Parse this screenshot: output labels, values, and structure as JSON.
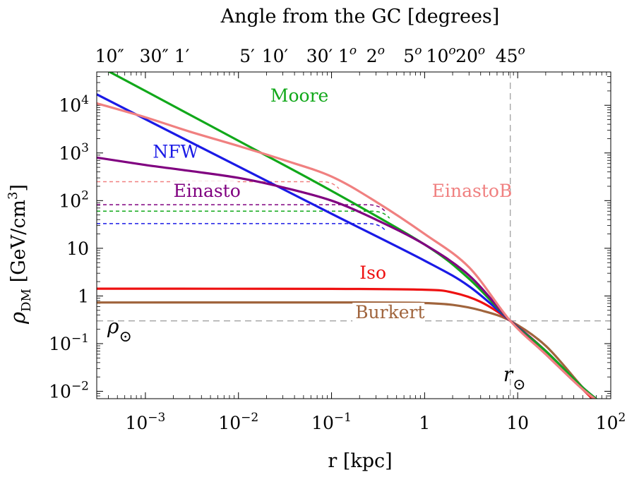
{
  "chart_data": {
    "type": "line",
    "title": "Angle from the GC [degrees]",
    "xlabel": "r [kpc]",
    "ylabel": "ρ_DM [GeV/cm³]",
    "xscale": "log",
    "yscale": "log",
    "xlim": [
      0.0003,
      100
    ],
    "ylim": [
      0.007,
      50000
    ],
    "x_ticks": [
      {
        "value": 0.001,
        "label": "10^-3"
      },
      {
        "value": 0.01,
        "label": "10^-2"
      },
      {
        "value": 0.1,
        "label": "10^-1"
      },
      {
        "value": 1,
        "label": "1"
      },
      {
        "value": 10,
        "label": "10"
      },
      {
        "value": 100,
        "label": "10^2"
      }
    ],
    "y_ticks": [
      {
        "value": 0.01,
        "label": "10^-2"
      },
      {
        "value": 0.1,
        "label": "10^-1"
      },
      {
        "value": 1,
        "label": "1"
      },
      {
        "value": 10,
        "label": "10"
      },
      {
        "value": 100,
        "label": "10^2"
      },
      {
        "value": 1000,
        "label": "10^3"
      },
      {
        "value": 10000,
        "label": "10^4"
      }
    ],
    "top_axis_label": "Angle from the GC [degrees]",
    "top_ticks": [
      {
        "label": "10″",
        "value": 0.000412
      },
      {
        "label": "30″",
        "value": 0.00124
      },
      {
        "label": "1′",
        "value": 0.00247
      },
      {
        "label": "5′",
        "value": 0.0124
      },
      {
        "label": "10′",
        "value": 0.0247
      },
      {
        "label": "30′",
        "value": 0.0742
      },
      {
        "label": "1ᵒ",
        "value": 0.148
      },
      {
        "label": "2ᵒ",
        "value": 0.297
      },
      {
        "label": "5ᵒ",
        "value": 0.743
      },
      {
        "label": "10ᵒ",
        "value": 1.5
      },
      {
        "label": "20ᵒ",
        "value": 3.1
      },
      {
        "label": "45ᵒ",
        "value": 8.33
      }
    ],
    "reference_lines": {
      "r_sun": {
        "value": 8.33,
        "label": "r",
        "subscript": "⊙"
      },
      "rho_sun": {
        "value": 0.3,
        "label": "ρ",
        "subscript": "⊙"
      }
    },
    "series": [
      {
        "name": "Moore",
        "color": "#11a81a",
        "label_at": [
          0.022,
          12000
        ],
        "points": [
          [
            0.0003,
            70000
          ],
          [
            0.001,
            20000
          ],
          [
            0.01,
            1800
          ],
          [
            0.1,
            160
          ],
          [
            1,
            12
          ],
          [
            3,
            2.3
          ],
          [
            8.33,
            0.3
          ],
          [
            20,
            0.07
          ],
          [
            50,
            0.012
          ],
          [
            100,
            0.004
          ]
        ]
      },
      {
        "name": "NFW",
        "color": "#1a1ae6",
        "label_at": [
          0.0012,
          800
        ],
        "points": [
          [
            0.0003,
            17000
          ],
          [
            0.001,
            5100
          ],
          [
            0.01,
            520
          ],
          [
            0.1,
            53
          ],
          [
            1,
            5.5
          ],
          [
            3,
            1.6
          ],
          [
            8.33,
            0.3
          ],
          [
            20,
            0.07
          ],
          [
            50,
            0.012
          ],
          [
            100,
            0.004
          ]
        ]
      },
      {
        "name": "Einasto",
        "color": "#800080",
        "label_at": [
          0.002,
          120
        ],
        "points": [
          [
            0.0003,
            800
          ],
          [
            0.001,
            560
          ],
          [
            0.003,
            420
          ],
          [
            0.01,
            300
          ],
          [
            0.03,
            190
          ],
          [
            0.1,
            100
          ],
          [
            0.3,
            40
          ],
          [
            1,
            12
          ],
          [
            3,
            2.7
          ],
          [
            8.33,
            0.3
          ],
          [
            20,
            0.06
          ],
          [
            50,
            0.011
          ],
          [
            100,
            0.004
          ]
        ]
      },
      {
        "name": "EinastoB",
        "color": "#f08080",
        "label_at": [
          1.2,
          120
        ],
        "points": [
          [
            0.0003,
            11000
          ],
          [
            0.001,
            5600
          ],
          [
            0.003,
            2800
          ],
          [
            0.01,
            1400
          ],
          [
            0.03,
            720
          ],
          [
            0.1,
            320
          ],
          [
            0.3,
            95
          ],
          [
            1,
            20
          ],
          [
            3,
            4
          ],
          [
            8.33,
            0.3
          ],
          [
            20,
            0.06
          ],
          [
            50,
            0.011
          ],
          [
            100,
            0.004
          ]
        ]
      },
      {
        "name": "Iso",
        "color": "#ee1111",
        "label_at": [
          0.2,
          2.3
        ],
        "points": [
          [
            0.0003,
            1.42
          ],
          [
            0.1,
            1.41
          ],
          [
            1,
            1.35
          ],
          [
            2,
            1.18
          ],
          [
            4,
            0.75
          ],
          [
            8.33,
            0.3
          ],
          [
            20,
            0.07
          ],
          [
            50,
            0.011
          ],
          [
            100,
            0.003
          ]
        ]
      },
      {
        "name": "Burkert",
        "color": "#a0643c",
        "label_at": [
          0.18,
          0.34
        ],
        "points": [
          [
            0.0003,
            0.73
          ],
          [
            0.3,
            0.73
          ],
          [
            1,
            0.71
          ],
          [
            2,
            0.65
          ],
          [
            4,
            0.5
          ],
          [
            8.33,
            0.3
          ],
          [
            20,
            0.09
          ],
          [
            50,
            0.012
          ],
          [
            100,
            0.003
          ]
        ]
      }
    ],
    "dashed_series": [
      {
        "name": "EinastoB-dashed",
        "color": "#f08080",
        "y": 250,
        "x_end": 0.12
      },
      {
        "name": "Einasto-dashed",
        "color": "#800080",
        "y": 82,
        "x_end": 0.38
      },
      {
        "name": "Moore-dashed",
        "color": "#11a81a",
        "y": 60,
        "x_end": 0.42
      },
      {
        "name": "NFW-dashed",
        "color": "#1a1ae6",
        "y": 33,
        "x_end": 0.38
      }
    ]
  }
}
